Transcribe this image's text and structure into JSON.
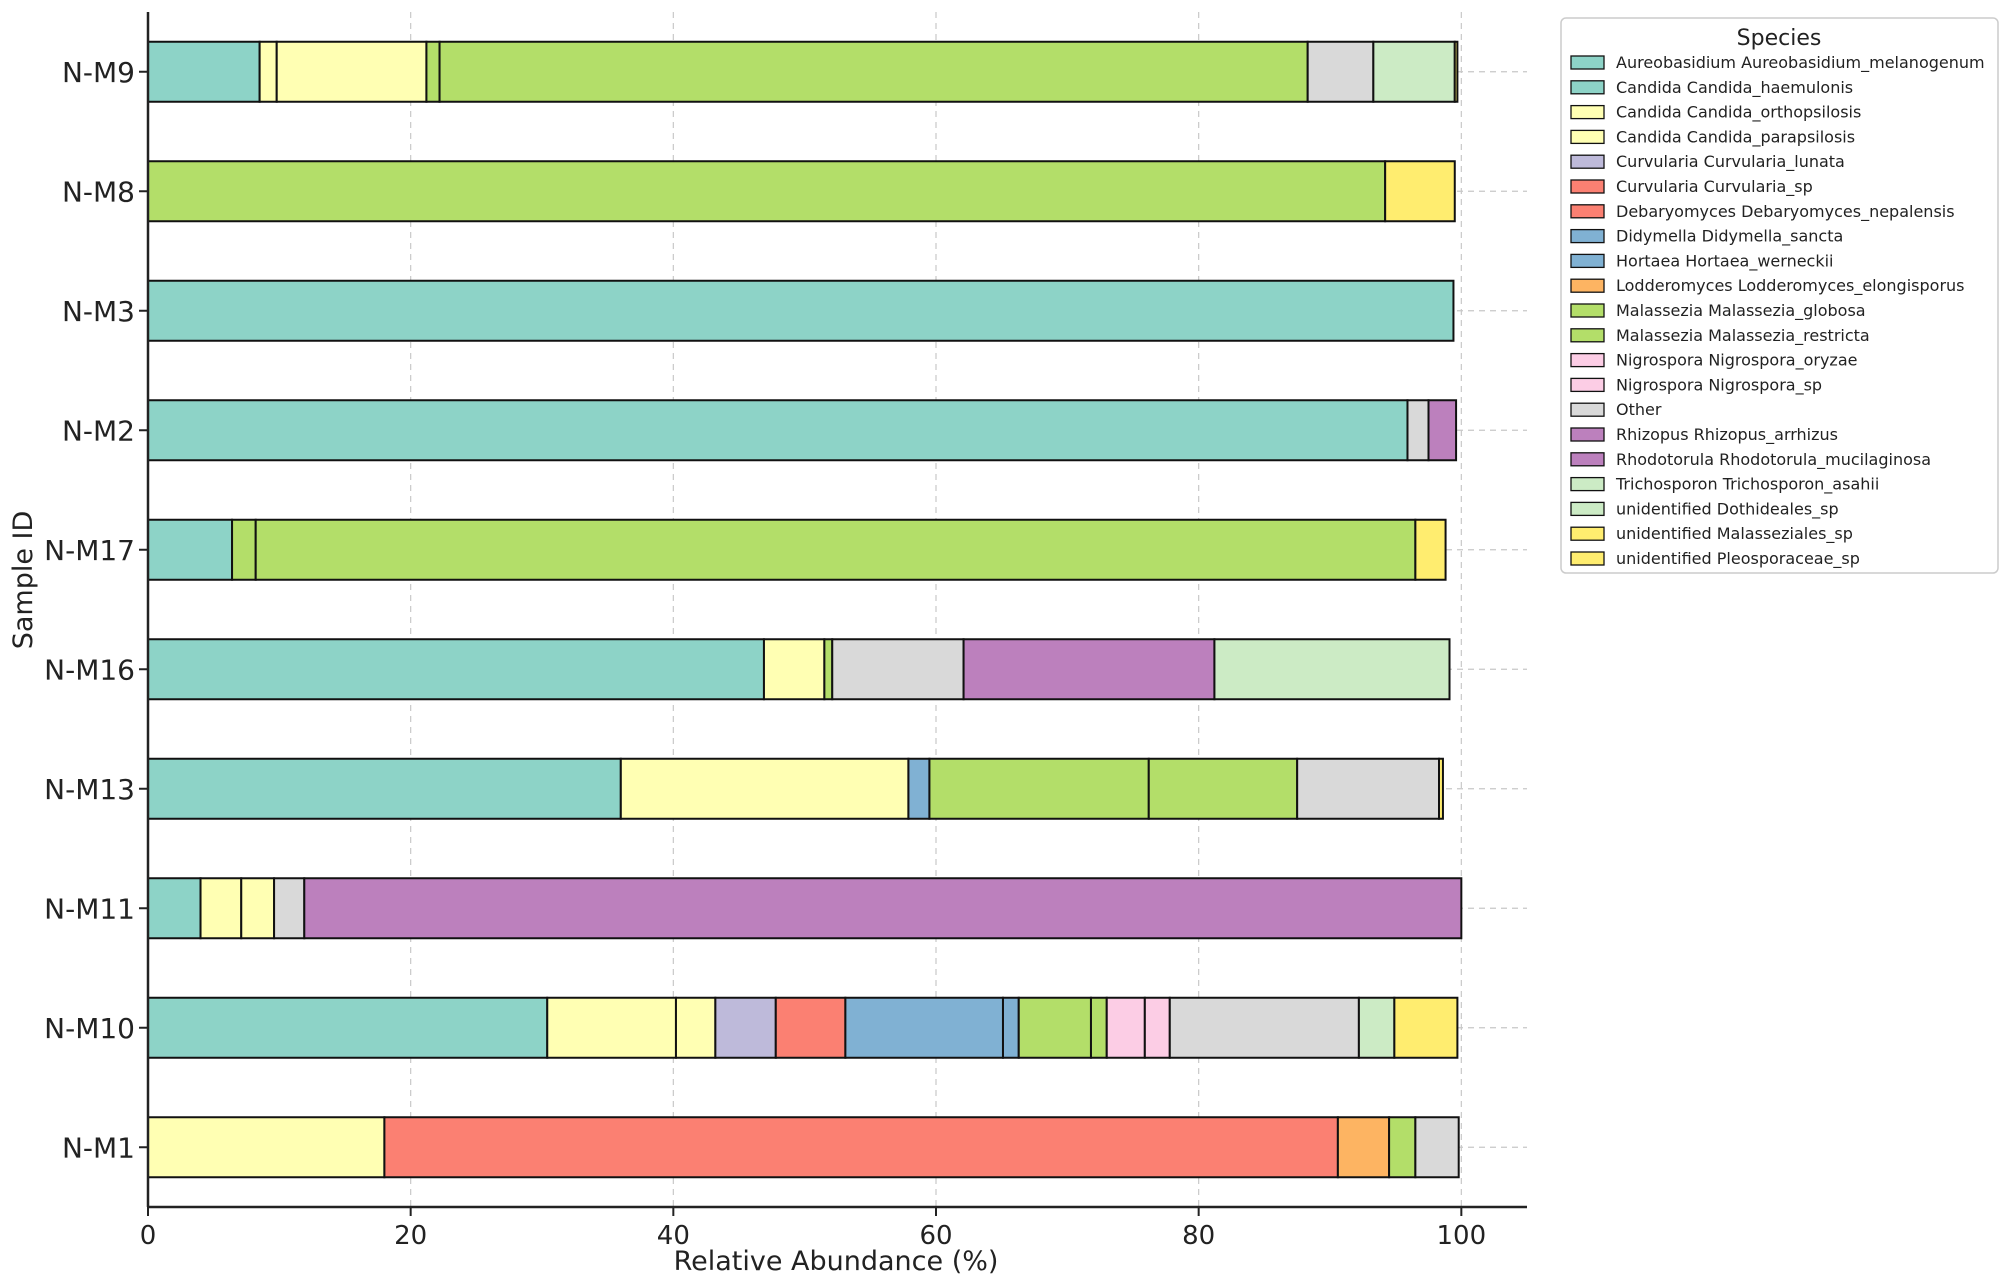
{
  "chart_data": {
    "type": "bar",
    "orientation": "horizontal",
    "stacked": true,
    "xlabel": "Relative Abundance (%)",
    "ylabel": "Sample ID",
    "xlim": [
      0,
      105
    ],
    "xticks": [
      0,
      20,
      40,
      60,
      80,
      100
    ],
    "grid": true,
    "legend_title": "Species",
    "legend_position": "top-right outside",
    "categories": [
      "N-M9",
      "N-M8",
      "N-M3",
      "N-M2",
      "N-M17",
      "N-M16",
      "N-M13",
      "N-M11",
      "N-M10",
      "N-M1"
    ],
    "series": [
      {
        "name": "Aureobasidium Aureobasidium_melanogenum",
        "color": "#8dd3c7",
        "values": [
          8.5,
          0,
          0,
          0,
          0,
          0,
          0,
          0,
          0,
          0
        ]
      },
      {
        "name": "Candida Candida_haemulonis",
        "color": "#8dd3c7",
        "values": [
          0,
          0,
          99.4,
          95.9,
          6.4,
          46.9,
          36.0,
          4.0,
          30.4,
          0
        ]
      },
      {
        "name": "Candida Candida_orthopsilosis",
        "color": "#ffffb3",
        "values": [
          1.3,
          0,
          0,
          0,
          0,
          4.6,
          21.9,
          3.1,
          9.8,
          0
        ]
      },
      {
        "name": "Candida Candida_parapsilosis",
        "color": "#ffffb3",
        "values": [
          11.4,
          0,
          0,
          0,
          0,
          0,
          0,
          2.5,
          3.0,
          18.0
        ]
      },
      {
        "name": "Curvularia Curvularia_lunata",
        "color": "#bebada",
        "values": [
          0,
          0,
          0,
          0,
          0,
          0,
          0,
          0,
          4.6,
          0
        ]
      },
      {
        "name": "Curvularia Curvularia_sp",
        "color": "#fb8072",
        "values": [
          0,
          0,
          0,
          0,
          0,
          0,
          0,
          0,
          5.3,
          72.6
        ]
      },
      {
        "name": "Debaryomyces Debaryomyces_nepalensis",
        "color": "#fb8072",
        "values": [
          0,
          0,
          0,
          0,
          0,
          0,
          0,
          0,
          0,
          0
        ]
      },
      {
        "name": "Didymella Didymella_sancta",
        "color": "#80b1d3",
        "values": [
          0,
          0,
          0,
          0,
          0,
          0,
          1.6,
          0,
          12.0,
          0
        ]
      },
      {
        "name": "Hortaea Hortaea_werneckii",
        "color": "#80b1d3",
        "values": [
          0,
          0,
          0,
          0,
          0,
          0,
          0,
          0,
          1.2,
          0
        ]
      },
      {
        "name": "Lodderomyces Lodderomyces_elongisporus",
        "color": "#fdb462",
        "values": [
          0,
          0,
          0,
          0,
          0,
          0,
          0,
          0,
          0,
          3.9
        ]
      },
      {
        "name": "Malassezia Malassezia_globosa",
        "color": "#b3de69",
        "values": [
          1.0,
          0,
          0,
          0,
          1.8,
          0.6,
          16.7,
          0,
          5.5,
          2.0
        ]
      },
      {
        "name": "Malassezia Malassezia_restricta",
        "color": "#b3de69",
        "values": [
          66.1,
          94.2,
          0,
          0,
          88.3,
          0,
          11.3,
          0,
          1.2,
          0
        ]
      },
      {
        "name": "Nigrospora Nigrospora_oryzae",
        "color": "#fccde5",
        "values": [
          0,
          0,
          0,
          0,
          0,
          0,
          0,
          0,
          2.9,
          0
        ]
      },
      {
        "name": "Nigrospora Nigrospora_sp",
        "color": "#fccde5",
        "values": [
          0,
          0,
          0,
          0,
          0,
          0,
          0,
          0,
          1.9,
          0
        ]
      },
      {
        "name": "Other",
        "color": "#d9d9d9",
        "values": [
          5.0,
          0,
          0,
          1.6,
          0,
          10.0,
          10.8,
          2.3,
          14.4,
          3.3
        ]
      },
      {
        "name": "Rhizopus Rhizopus_arrhizus",
        "color": "#bc80bd",
        "values": [
          0,
          0,
          0,
          0,
          0,
          0,
          0,
          0,
          0,
          0
        ]
      },
      {
        "name": "Rhodotorula Rhodotorula_mucilaginosa",
        "color": "#bc80bd",
        "values": [
          0,
          0,
          0,
          2.1,
          0,
          19.1,
          0,
          88.1,
          0,
          0
        ]
      },
      {
        "name": "Trichosporon Trichosporon_asahii",
        "color": "#ccebc5",
        "values": [
          0,
          0,
          0,
          0,
          0,
          0,
          0,
          0,
          0,
          0
        ]
      },
      {
        "name": "unidentified Dothideales_sp",
        "color": "#ccebc5",
        "values": [
          6.2,
          0,
          0,
          0,
          0,
          17.9,
          0,
          0,
          2.7,
          0
        ]
      },
      {
        "name": "unidentified Malasseziales_sp",
        "color": "#ffed6f",
        "values": [
          0,
          5.3,
          0,
          0,
          0,
          0,
          0,
          0,
          0,
          0
        ]
      },
      {
        "name": "unidentified Pleosporaceae_sp",
        "color": "#ffed6f",
        "values": [
          0.2,
          0,
          0,
          0,
          2.3,
          0,
          0.3,
          0,
          4.8,
          0
        ]
      }
    ]
  }
}
